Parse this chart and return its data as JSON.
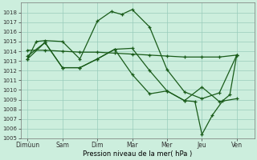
{
  "xlabel": "Pression niveau de la mer( hPa )",
  "background_color": "#cceedd",
  "grid_color": "#99ccbb",
  "line_color": "#1a5c1a",
  "ylim": [
    1005,
    1019
  ],
  "yticks": [
    1005,
    1006,
    1007,
    1008,
    1009,
    1010,
    1011,
    1012,
    1013,
    1014,
    1015,
    1016,
    1017,
    1018
  ],
  "xtick_labels": [
    "Dimùun",
    "Sam",
    "Dim",
    "Mar",
    "Mer",
    "Jeu",
    "Ven"
  ],
  "xtick_positions": [
    0,
    1,
    2,
    3,
    4,
    5,
    6
  ],
  "xlim": [
    -0.2,
    6.5
  ],
  "series": [
    {
      "x": [
        0,
        0.25,
        0.5,
        1.0,
        1.5,
        2.0,
        2.4,
        2.7,
        3.0,
        3.5,
        4.0,
        4.5,
        5.0,
        5.5,
        6.0
      ],
      "y": [
        1013.2,
        1015.0,
        1015.1,
        1015.0,
        1013.2,
        1017.1,
        1018.1,
        1017.8,
        1018.3,
        1016.5,
        1012.1,
        1009.8,
        1009.1,
        1009.7,
        1013.6
      ]
    },
    {
      "x": [
        0,
        0.5,
        1.0,
        1.5,
        2.0,
        2.5,
        3.0,
        3.5,
        4.0,
        4.5,
        5.0,
        5.5,
        6.0
      ],
      "y": [
        1014.1,
        1014.1,
        1014.0,
        1013.9,
        1013.9,
        1013.8,
        1013.7,
        1013.6,
        1013.5,
        1013.4,
        1013.4,
        1013.4,
        1013.6
      ]
    },
    {
      "x": [
        0,
        0.5,
        1.0,
        1.5,
        2.0,
        2.5,
        3.0,
        3.5,
        4.0,
        4.5,
        5.0,
        5.5,
        6.0
      ],
      "y": [
        1013.5,
        1014.9,
        1012.3,
        1012.3,
        1013.2,
        1014.2,
        1014.3,
        1012.0,
        1009.9,
        1008.9,
        1010.3,
        1008.8,
        1009.1
      ]
    },
    {
      "x": [
        0,
        0.5,
        1.0,
        1.5,
        2.0,
        2.5,
        3.0,
        3.5,
        4.0,
        4.5,
        4.8,
        5.0,
        5.3,
        5.6,
        5.8,
        6.0
      ],
      "y": [
        1013.2,
        1014.9,
        1012.3,
        1012.3,
        1013.2,
        1014.2,
        1011.6,
        1009.6,
        1009.9,
        1008.9,
        1008.8,
        1005.4,
        1007.4,
        1008.9,
        1009.5,
        1013.6
      ]
    }
  ]
}
